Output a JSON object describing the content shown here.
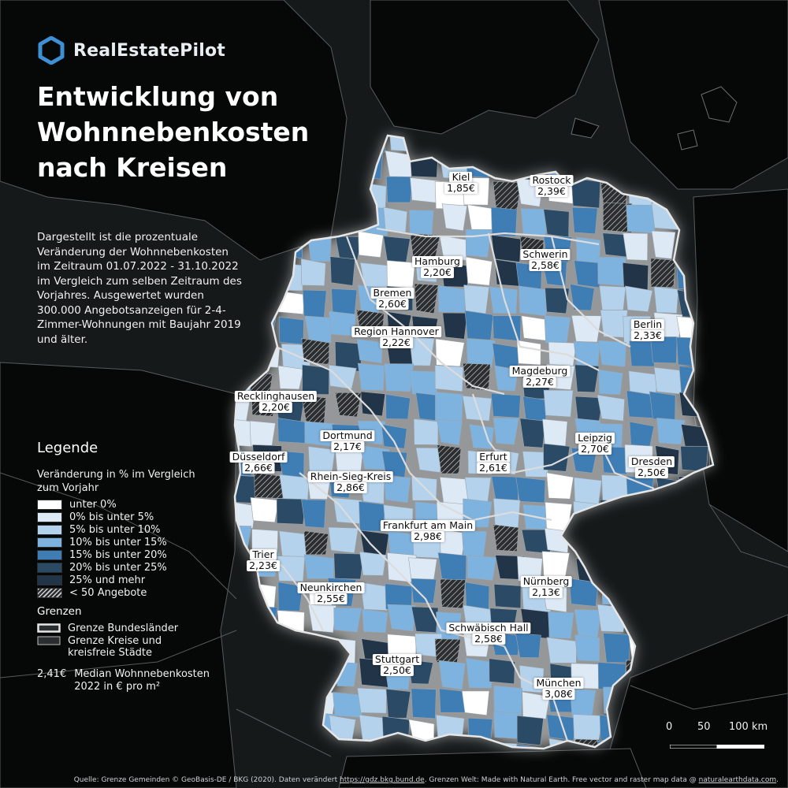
{
  "brand": {
    "name": "RealEstatePilot",
    "icon": "hexagon-logo-icon",
    "icon_color": "#3d8fd6"
  },
  "title_line1": "Entwicklung von Wohnnebenkosten",
  "title_line2": "nach Kreisen",
  "description": "Dargestellt ist die prozentuale Veränderung der Wohnnebenkosten im Zeitraum 01.07.2022 - 31.10.2022 im Vergleich zum selben Zeitraum des Vorjahres. Ausgewertet wurden 300.000 Angebotsanzeigen für 2-4-Zimmer-Wohnungen mit Baujahr 2019 und älter.",
  "legend": {
    "heading": "Legende",
    "subtitle": "Veränderung in % im Vergleich zum Vorjahr",
    "items": [
      {
        "label": "unter 0%",
        "color": "#ffffff"
      },
      {
        "label": "0% bis unter 5%",
        "color": "#dde9f5"
      },
      {
        "label": "5% bis unter 10%",
        "color": "#b4d2ec"
      },
      {
        "label": "10% bis unter 15%",
        "color": "#7fb3df"
      },
      {
        "label": "15% bis unter 20%",
        "color": "#3f7db5"
      },
      {
        "label": "20% bis unter 25%",
        "color": "#2a4a66"
      },
      {
        "label": "25% und mehr",
        "color": "#223447"
      },
      {
        "label": "< 50 Angebote",
        "color": "hatched"
      }
    ]
  },
  "borders": {
    "heading": "Grenzen",
    "state_border": "Grenze Bundesländer",
    "district_border": "Grenze Kreise und kreisfreie Städte"
  },
  "median": {
    "value": "2,41€",
    "label": "Median Wohnnebenkosten 2022 in € pro m²"
  },
  "cities": [
    {
      "name": "Kiel",
      "value": "1,85€"
    },
    {
      "name": "Rostock",
      "value": "2,39€"
    },
    {
      "name": "Hamburg",
      "value": "2,20€"
    },
    {
      "name": "Schwerin",
      "value": "2,58€"
    },
    {
      "name": "Bremen",
      "value": "2,60€"
    },
    {
      "name": "Region Hannover",
      "value": "2,22€"
    },
    {
      "name": "Berlin",
      "value": "2,33€"
    },
    {
      "name": "Magdeburg",
      "value": "2,27€"
    },
    {
      "name": "Recklinghausen",
      "value": "2,20€"
    },
    {
      "name": "Dortmund",
      "value": "2,17€"
    },
    {
      "name": "Düsseldorf",
      "value": "2,66€"
    },
    {
      "name": "Rhein-Sieg-Kreis",
      "value": "2,86€"
    },
    {
      "name": "Erfurt",
      "value": "2,61€"
    },
    {
      "name": "Leipzig",
      "value": "2,70€"
    },
    {
      "name": "Dresden",
      "value": "2,50€"
    },
    {
      "name": "Frankfurt am Main",
      "value": "2,98€"
    },
    {
      "name": "Trier",
      "value": "2,23€"
    },
    {
      "name": "Neunkirchen",
      "value": "2,55€"
    },
    {
      "name": "Nürnberg",
      "value": "2,13€"
    },
    {
      "name": "Schwäbisch Hall",
      "value": "2,58€"
    },
    {
      "name": "Stuttgart",
      "value": "2,50€"
    },
    {
      "name": "München",
      "value": "3,08€"
    }
  ],
  "scale": {
    "labels": [
      "0",
      "50",
      "100 km"
    ]
  },
  "source": {
    "text_before": "Quelle: Grenze Gemeinden © GeoBasis-DE / BKG (2020). Daten verändert ",
    "link1": "https://gdz.bkg.bund.de",
    "text_middle": ". Grenzen Welt: Made with Natural Earth. Free vector and raster map data @ ",
    "link2": "naturalearthdata.com",
    "text_after": "."
  },
  "colors": {
    "background": "#15191a",
    "land_dark": "#060707",
    "neighbor_border": "#555c5e"
  }
}
